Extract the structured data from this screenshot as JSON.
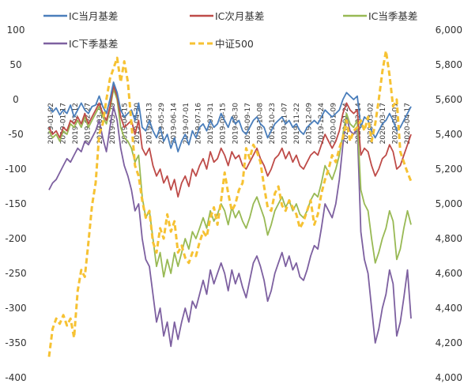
{
  "chart_data": {
    "type": "line",
    "title": "",
    "xlabel": "",
    "ylabel": "",
    "ylim": [
      -400,
      100
    ],
    "y2lim": [
      4000,
      6000
    ],
    "yticks": [
      100,
      50,
      0,
      -50,
      -100,
      -150,
      -200,
      -250,
      -300,
      -350,
      -400
    ],
    "y2ticks": [
      "6,000",
      "5,800",
      "5,600",
      "5,400",
      "5,200",
      "5,000",
      "4,800",
      "4,600",
      "4,400",
      "4,200",
      "4,000"
    ],
    "x_labels": [
      "2019-01-02",
      "2019-01-17",
      "2019-02-12",
      "2019-02-27",
      "2019-03-14",
      "2019-03-29",
      "2019-04-15",
      "2019-04-30",
      "2019-05-13",
      "2019-05-29",
      "2019-06-14",
      "2019-07-01",
      "2019-07-16",
      "2019-07-31",
      "2019-08-15",
      "2019-08-30",
      "2019-09-17",
      "2019-10-08",
      "2019-10-23",
      "2019-11-07",
      "2019-11-22",
      "2019-12-09",
      "2019-12-24",
      "2020-01-09",
      "2020-01-24",
      "2020-02-14",
      "2020-03-02",
      "2020-03-17",
      "2020-04-01",
      "2020-04-17"
    ],
    "legend_position": "top",
    "grid": false,
    "colors": {
      "ic_month": "#4a7ebb",
      "ic_next": "#be4b48",
      "ic_quarter": "#98b954",
      "ic_next_quarter": "#7d60a0",
      "csi500": "#f6c233"
    },
    "series": [
      {
        "name": "IC当月基差",
        "axis": "left",
        "values": [
          -10,
          -18,
          -12,
          -22,
          -15,
          -20,
          -8,
          -25,
          -15,
          -5,
          -15,
          -20,
          -10,
          -8,
          5,
          -10,
          -20,
          0,
          25,
          10,
          -15,
          -25,
          -20,
          -15,
          -30,
          -5,
          -40,
          -45,
          -30,
          -45,
          -55,
          -40,
          -60,
          -50,
          -70,
          -55,
          -75,
          -60,
          -50,
          -65,
          -45,
          -55,
          -40,
          -35,
          -45,
          -30,
          -40,
          -35,
          -20,
          -30,
          -40,
          -25,
          -35,
          -30,
          -45,
          -50,
          -40,
          -30,
          -25,
          -35,
          -40,
          -55,
          -45,
          -35,
          -30,
          -25,
          -35,
          -30,
          -40,
          -35,
          -45,
          -50,
          -40,
          -35,
          -30,
          -35,
          -25,
          -15,
          -20,
          -25,
          -20,
          -15,
          0,
          10,
          5,
          0,
          5,
          -40,
          -25,
          -30,
          -45,
          -55,
          -45,
          -35,
          -30,
          -20,
          -30,
          -45,
          -40,
          -30,
          -20,
          -10
        ]
      },
      {
        "name": "IC次月基差",
        "axis": "left",
        "values": [
          -40,
          -50,
          -45,
          -55,
          -40,
          -45,
          -30,
          -35,
          -25,
          -35,
          -20,
          -35,
          -25,
          -15,
          -5,
          -20,
          -30,
          -10,
          20,
          5,
          -25,
          -40,
          -35,
          -30,
          -50,
          -30,
          -70,
          -80,
          -70,
          -95,
          -110,
          -100,
          -120,
          -110,
          -130,
          -115,
          -140,
          -120,
          -110,
          -125,
          -100,
          -110,
          -95,
          -85,
          -100,
          -75,
          -90,
          -85,
          -70,
          -80,
          -95,
          -75,
          -85,
          -80,
          -95,
          -100,
          -90,
          -80,
          -70,
          -85,
          -95,
          -110,
          -100,
          -85,
          -80,
          -70,
          -85,
          -75,
          -90,
          -80,
          -95,
          -100,
          -90,
          -80,
          -75,
          -80,
          -65,
          -50,
          -60,
          -70,
          -60,
          -45,
          -20,
          -5,
          -15,
          -20,
          -15,
          -80,
          -70,
          -75,
          -95,
          -110,
          -100,
          -85,
          -80,
          -65,
          -75,
          -100,
          -95,
          -80,
          -65,
          -50
        ]
      },
      {
        "name": "IC当季基差",
        "axis": "left",
        "values": [
          -45,
          -55,
          -50,
          -60,
          -45,
          -50,
          -35,
          -40,
          -30,
          -40,
          -25,
          -40,
          -30,
          -20,
          -10,
          -25,
          -35,
          -15,
          15,
          0,
          -40,
          -55,
          -60,
          -70,
          -90,
          -80,
          -140,
          -170,
          -160,
          -200,
          -240,
          -220,
          -255,
          -230,
          -250,
          -220,
          -240,
          -220,
          -200,
          -215,
          -190,
          -200,
          -185,
          -170,
          -185,
          -160,
          -175,
          -165,
          -150,
          -160,
          -180,
          -155,
          -170,
          -160,
          -175,
          -185,
          -170,
          -150,
          -140,
          -155,
          -170,
          -195,
          -180,
          -160,
          -150,
          -140,
          -155,
          -145,
          -160,
          -150,
          -165,
          -170,
          -160,
          -145,
          -135,
          -140,
          -120,
          -95,
          -105,
          -115,
          -100,
          -80,
          -50,
          -20,
          -35,
          -40,
          -30,
          -130,
          -150,
          -160,
          -200,
          -235,
          -220,
          -200,
          -185,
          -160,
          -175,
          -230,
          -215,
          -185,
          -160,
          -180
        ]
      },
      {
        "name": "IC下季基差",
        "axis": "left",
        "values": [
          -130,
          -120,
          -115,
          -105,
          -95,
          -85,
          -90,
          -80,
          -70,
          -75,
          -60,
          -65,
          -55,
          -45,
          -30,
          -55,
          -75,
          -40,
          -10,
          -30,
          -70,
          -95,
          -110,
          -130,
          -160,
          -150,
          -200,
          -230,
          -240,
          -280,
          -320,
          -300,
          -340,
          -320,
          -355,
          -320,
          -345,
          -320,
          -300,
          -320,
          -290,
          -300,
          -280,
          -260,
          -280,
          -245,
          -265,
          -250,
          -235,
          -250,
          -275,
          -245,
          -265,
          -250,
          -270,
          -285,
          -260,
          -235,
          -225,
          -240,
          -260,
          -290,
          -275,
          -250,
          -235,
          -220,
          -240,
          -225,
          -245,
          -235,
          -255,
          -260,
          -245,
          -225,
          -210,
          -215,
          -185,
          -150,
          -160,
          -170,
          -150,
          -115,
          -65,
          -25,
          -45,
          -50,
          -40,
          -190,
          -230,
          -250,
          -300,
          -350,
          -330,
          -300,
          -280,
          -245,
          -265,
          -340,
          -320,
          -285,
          -245,
          -315
        ]
      },
      {
        "name": "中证500",
        "axis": "right",
        "values": [
          4120,
          4280,
          4340,
          4310,
          4360,
          4300,
          4340,
          4230,
          4500,
          4620,
          4580,
          4780,
          4990,
          5120,
          5400,
          5460,
          5600,
          5720,
          5780,
          5840,
          5700,
          5820,
          5700,
          5460,
          5220,
          5160,
          5020,
          4920,
          4960,
          4780,
          4720,
          4860,
          4800,
          4940,
          4840,
          4900,
          4720,
          4760,
          4690,
          4660,
          4720,
          4700,
          4780,
          4840,
          4810,
          4920,
          4980,
          4880,
          5020,
          5180,
          5060,
          4960,
          5000,
          5080,
          5120,
          5320,
          5260,
          5340,
          5300,
          5240,
          5100,
          4980,
          4960,
          5060,
          5100,
          4990,
          4960,
          5020,
          4980,
          4940,
          4860,
          4900,
          4960,
          5020,
          4880,
          4940,
          5060,
          5140,
          5200,
          5280,
          5240,
          5320,
          5380,
          5480,
          5360,
          5420,
          5440,
          5480,
          5420,
          5500,
          5360,
          5460,
          5600,
          5760,
          5880,
          5740,
          5560,
          5600,
          5300,
          5240,
          5180,
          5130
        ]
      }
    ]
  }
}
